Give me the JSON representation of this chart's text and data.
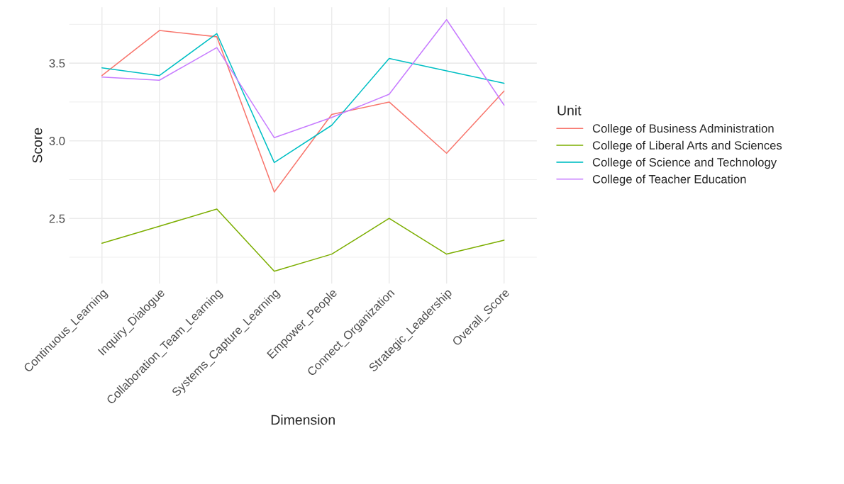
{
  "chart_data": {
    "type": "line",
    "xlabel": "Dimension",
    "ylabel": "Score",
    "legend_title": "Unit",
    "categories": [
      "Continuous_Learning",
      "Inquiry_Dialogue",
      "Collaboration_Team_Learning",
      "Systems_Capture_Learning",
      "Empower_People",
      "Connect_Organization",
      "Strategic_Leadership",
      "Overall_Score"
    ],
    "series": [
      {
        "name": "College of Business Administration",
        "color": "#f8766d",
        "values": [
          3.42,
          3.71,
          3.67,
          2.67,
          3.17,
          3.25,
          2.92,
          3.32
        ]
      },
      {
        "name": "College of Liberal Arts and Sciences",
        "color": "#7cae00",
        "values": [
          2.34,
          2.45,
          2.56,
          2.16,
          2.27,
          2.5,
          2.27,
          2.36
        ]
      },
      {
        "name": "College of Science and Technology",
        "color": "#00bfc4",
        "values": [
          3.47,
          3.42,
          3.69,
          2.86,
          3.1,
          3.53,
          3.45,
          3.37
        ]
      },
      {
        "name": "College of Teacher Education",
        "color": "#c77cff",
        "values": [
          3.41,
          3.39,
          3.6,
          3.02,
          3.15,
          3.3,
          3.78,
          3.23
        ]
      }
    ],
    "ylim": [
      2.08,
      3.86
    ],
    "yticks": [
      {
        "value": 2.25,
        "label": null
      },
      {
        "value": 2.5,
        "label": "2.5"
      },
      {
        "value": 2.75,
        "label": null
      },
      {
        "value": 3.0,
        "label": "3.0"
      },
      {
        "value": 3.25,
        "label": null
      },
      {
        "value": 3.5,
        "label": "3.5"
      },
      {
        "value": 3.75,
        "label": null
      }
    ],
    "grid": true,
    "legend": "right",
    "marker": "none",
    "line_style": "solid"
  }
}
